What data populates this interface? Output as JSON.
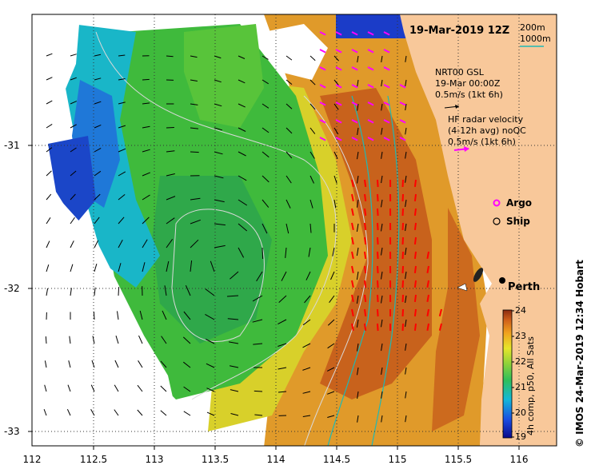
{
  "title": "19-Mar-2019 12Z",
  "depth_legend": {
    "line1": "200m",
    "line2": "1000m",
    "line2_color": "#1fb9b5"
  },
  "current_legend": {
    "model": [
      "NRT00 GSL",
      "19-Mar 00:00Z",
      "0.5m/s (1kt 6h)"
    ],
    "radar": [
      "HF radar velocity",
      "(4-12h avg) noQC",
      "0.5m/s (1kt 6h)"
    ],
    "model_arrow_color": "#000000",
    "radar_arrow_color": "#ff00ff"
  },
  "symbols": {
    "argo": "Argo",
    "ship": "Ship",
    "argo_color": "#ff00ff"
  },
  "place_label": "Perth",
  "x_ticks": [
    "112",
    "112.5",
    "113",
    "113.5",
    "114",
    "114.5",
    "115",
    "115.5",
    "116"
  ],
  "y_ticks": [
    "-31",
    "-32",
    "-33"
  ],
  "colorbar": {
    "ticks": [
      "24",
      "23",
      "22",
      "21",
      "20",
      "19"
    ],
    "label": "4h comp, p50, All Sats"
  },
  "credit": "© IMOS 24-Mar-2019 12:34 Hobart",
  "colors": {
    "land": "#f8c89a",
    "frame": "#000000"
  }
}
